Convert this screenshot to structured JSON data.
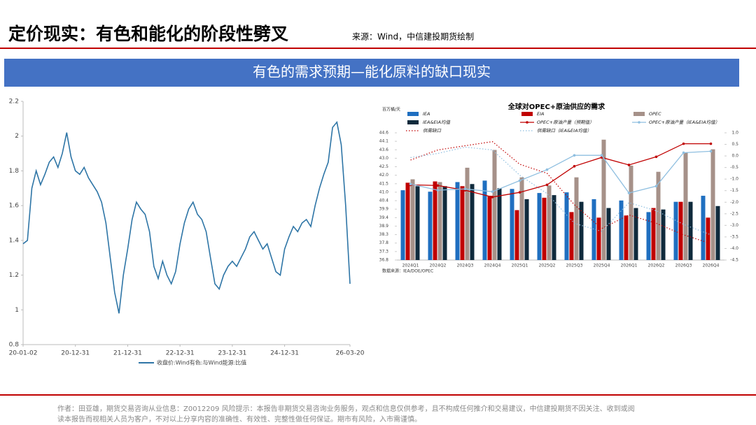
{
  "header": {
    "title": "定价现实：有色和能化的阶段性劈叉",
    "source": "来源：Wind，中信建投期货绘制"
  },
  "banner": "有色的需求预期—能化原料的缺口现实",
  "footer": [
    "作者：田亚雄，期货交易咨询从业信息：Z0012209    风险提示：本报告非期货交易咨询业务服务，观点和信息仅供参考，且不构成任何推介和交易建议，中信建投期货不因关注、收到或阅",
    "读本报告而视相关人员为客户，不对以上分享内容的准确性、有效性、完整性做任何保证。期市有风险，入市需谨慎。"
  ],
  "chart_data": [
    {
      "type": "line",
      "categories": [
        "20-01-02",
        null,
        null,
        null,
        null,
        null,
        null,
        null,
        null,
        null,
        null,
        null,
        "20-12-31",
        null,
        null,
        null,
        null,
        null,
        null,
        null,
        null,
        null,
        null,
        null,
        "21-12-31",
        null,
        null,
        null,
        null,
        null,
        null,
        null,
        null,
        null,
        null,
        null,
        "22-12-31",
        null,
        null,
        null,
        null,
        null,
        null,
        null,
        null,
        null,
        null,
        null,
        "23-12-31",
        null,
        null,
        null,
        null,
        null,
        null,
        null,
        null,
        null,
        null,
        null,
        "24-12-31",
        null,
        null,
        null,
        null,
        null,
        null,
        null,
        null,
        null,
        null,
        null,
        null,
        null,
        null,
        "26-03-20"
      ],
      "series": [
        {
          "name": "收盘价:Wind有色:与Wind能源:比值",
          "color": "#2e75a6",
          "values": [
            1.38,
            1.4,
            1.7,
            1.8,
            1.72,
            1.78,
            1.85,
            1.88,
            1.82,
            1.9,
            2.02,
            1.88,
            1.8,
            1.78,
            1.82,
            1.76,
            1.72,
            1.68,
            1.62,
            1.5,
            1.3,
            1.1,
            0.98,
            1.2,
            1.35,
            1.52,
            1.62,
            1.58,
            1.55,
            1.45,
            1.25,
            1.18,
            1.28,
            1.2,
            1.15,
            1.22,
            1.38,
            1.5,
            1.58,
            1.62,
            1.55,
            1.52,
            1.45,
            1.3,
            1.15,
            1.12,
            1.2,
            1.25,
            1.28,
            1.25,
            1.3,
            1.35,
            1.42,
            1.45,
            1.4,
            1.35,
            1.38,
            1.3,
            1.22,
            1.2,
            1.35,
            1.42,
            1.48,
            1.45,
            1.5,
            1.52,
            1.48,
            1.6,
            1.7,
            1.78,
            1.85,
            2.05,
            2.08,
            1.95,
            1.6,
            1.15
          ]
        }
      ],
      "ylim": [
        0.8,
        2.2
      ],
      "yticks": [
        0.8,
        1,
        1.2,
        1.4,
        1.6,
        1.8,
        2,
        2.2
      ],
      "grid": false,
      "legend": "bottom"
    },
    {
      "type": "combo",
      "title": "全球对OPEC+原油供应的需求",
      "ylabel": "百万桶/天",
      "source": "数据来源：IEA/DOE/OPEC",
      "categories": [
        "2024Q1",
        "2024Q2",
        "2024Q3",
        "2024Q4",
        "2025Q1",
        "2025Q2",
        "2025Q3",
        "2025Q4",
        "2026Q1",
        "2026Q2",
        "2026Q3",
        "2026Q4"
      ],
      "series": [
        {
          "name": "IEA",
          "kind": "bar",
          "color": "#1f6fc0",
          "values": [
            41.08,
            40.99,
            41.58,
            41.67,
            41.16,
            40.91,
            40.95,
            40.53,
            40.45,
            39.74,
            40.37,
            40.74
          ]
        },
        {
          "name": "EIA",
          "kind": "bar",
          "color": "#c00000",
          "values": [
            41.54,
            41.62,
            41.33,
            40.74,
            39.86,
            40.62,
            39.74,
            39.4,
            39.53,
            39.99,
            40.37,
            39.4
          ]
        },
        {
          "name": "OPEC",
          "kind": "bar",
          "color": "#a69189",
          "values": [
            41.75,
            41.58,
            42.46,
            43.55,
            41.87,
            41.37,
            41.87,
            44.18,
            42.59,
            42.21,
            43.38,
            43.59
          ]
        },
        {
          "name": "IEA&EIA均值",
          "kind": "bar",
          "color": "#0f2a3c",
          "values": [
            41.33,
            41.33,
            41.46,
            41.2,
            40.53,
            40.78,
            40.37,
            39.99,
            39.99,
            39.9,
            40.37,
            40.11
          ]
        },
        {
          "name": "OPEC+原油产量（预期值）",
          "kind": "line",
          "color": "#c00000",
          "dash": "solid",
          "values": [
            41.41,
            41.37,
            41.08,
            40.66,
            40.95,
            41.41,
            42.55,
            43.09,
            42.63,
            43.13,
            43.93,
            43.93
          ]
        },
        {
          "name": "OPEC+原油产量（IEA&EIA均值）",
          "kind": "line",
          "color": "#8fbfe0",
          "dash": "solid",
          "values": [
            41.46,
            41.08,
            41.16,
            40.99,
            41.67,
            42.34,
            43.22,
            43.22,
            40.91,
            41.33,
            43.38,
            43.47
          ]
        },
        {
          "name": "供需缺口",
          "kind": "line",
          "color": "#c00000",
          "dash": "dotted",
          "axis": "y2",
          "values": [
            -0.18,
            0.26,
            0.44,
            0.62,
            -0.36,
            -0.75,
            -2.11,
            -3.14,
            -2.55,
            -2.91,
            -3.41,
            -3.79
          ]
        },
        {
          "name": "供需缺口（IEA&EIA均值）",
          "kind": "line",
          "color": "#8fbfe0",
          "dash": "dotted",
          "axis": "y2",
          "values": [
            -0.07,
            0.11,
            0.38,
            0.26,
            -0.83,
            -1.63,
            -2.91,
            -3.26,
            -2.02,
            -2.37,
            -2.96,
            -3.41
          ]
        }
      ],
      "ylim": [
        36.8,
        44.6
      ],
      "yticks": [
        {
          "value": 36.8,
          "label": "36.8"
        },
        {
          "value": 37.32,
          "label": "37.3"
        },
        {
          "value": 37.84,
          "label": "37.8"
        },
        {
          "value": 38.36,
          "label": "38.3"
        },
        {
          "value": 38.88,
          "label": "38.9"
        },
        {
          "value": 39.4,
          "label": "39.4"
        },
        {
          "value": 39.92,
          "label": "39.9"
        },
        {
          "value": 40.44,
          "label": "40.4"
        },
        {
          "value": 40.96,
          "label": "41.0"
        },
        {
          "value": 41.48,
          "label": "41.5"
        },
        {
          "value": 42.0,
          "label": "42.0"
        },
        {
          "value": 42.52,
          "label": "42.5"
        },
        {
          "value": 43.04,
          "label": "43.0"
        },
        {
          "value": 43.56,
          "label": "43.6"
        },
        {
          "value": 44.08,
          "label": "44.1"
        },
        {
          "value": 44.6,
          "label": "44.6"
        }
      ],
      "y2lim": [
        -4.5,
        1
      ],
      "y2ticks": [
        {
          "value": 1,
          "label": "1.0"
        },
        0.5,
        {
          "value": 0,
          "label": "0.0"
        },
        -0.5,
        {
          "value": -1,
          "label": "-1.0"
        },
        -1.5,
        {
          "value": -2,
          "label": "-2.0"
        },
        -2.5,
        {
          "value": -3,
          "label": "-3.0"
        },
        -3.5,
        {
          "value": -4,
          "label": "-4.0"
        },
        -4.5
      ],
      "grid": false,
      "legend": "top"
    }
  ]
}
